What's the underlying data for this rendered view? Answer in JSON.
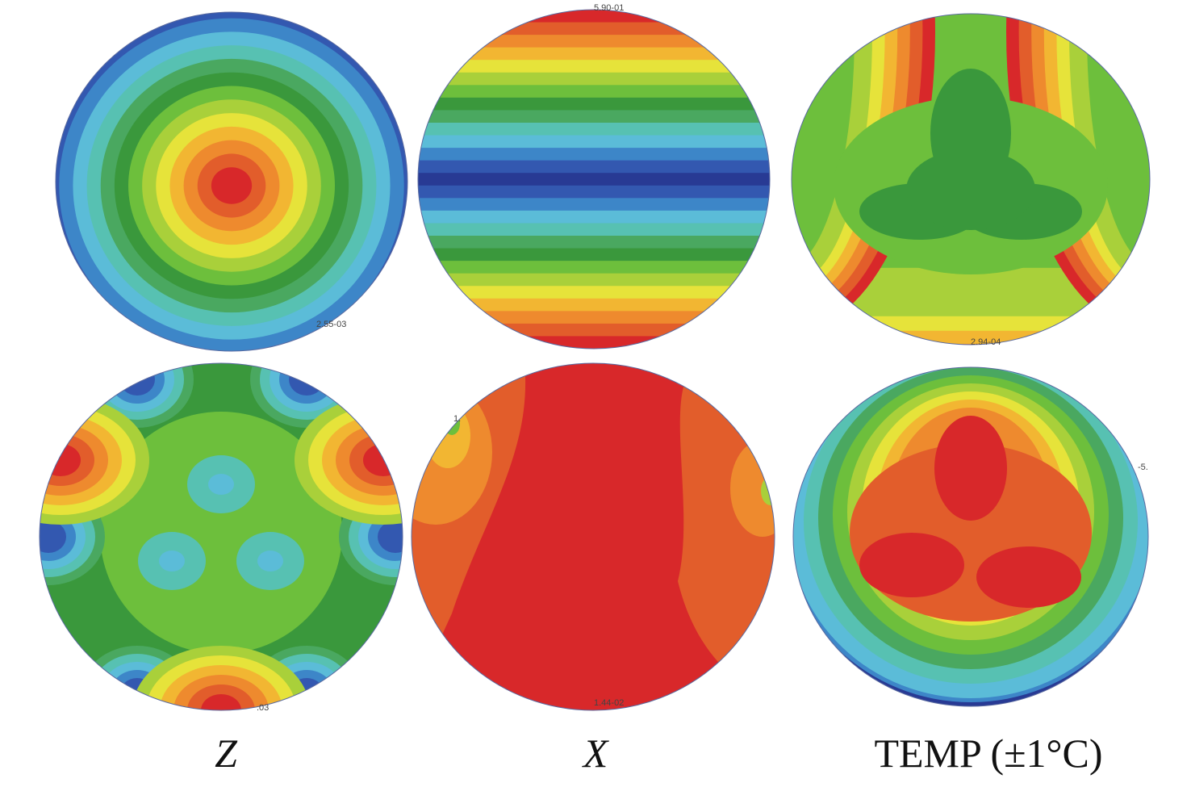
{
  "panels": [
    {
      "labels": [
        "2.55-03"
      ]
    },
    {
      "labels": [
        "5.90-01"
      ]
    },
    {
      "labels": [
        "2.94-04"
      ]
    },
    {
      "labels": [
        ".03"
      ]
    },
    {
      "labels": [
        "1.",
        "1.44-02"
      ]
    },
    {
      "labels": [
        "-5."
      ]
    }
  ],
  "captions": [
    "Z",
    "X",
    "TEMP (±1°C)"
  ]
}
